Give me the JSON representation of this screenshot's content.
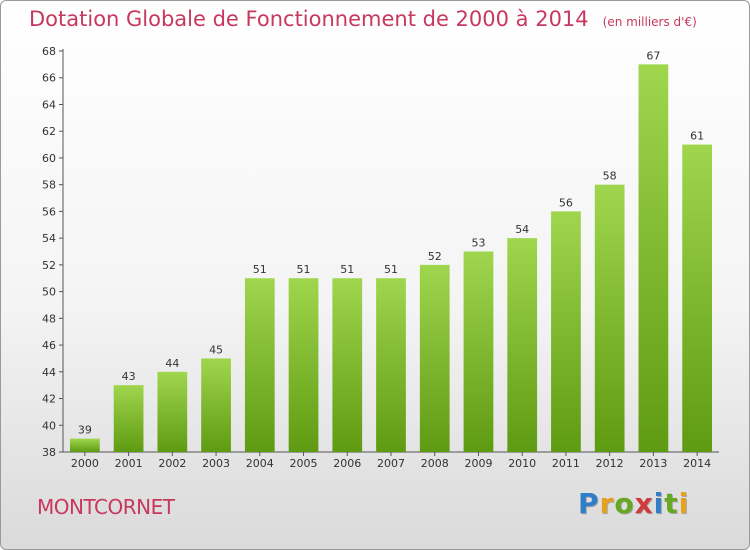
{
  "title": "Dotation Globale de Fonctionnement de 2000 à 2014",
  "unit": "(en milliers d'€)",
  "commune": "MONTCORNET",
  "logo": {
    "letters": [
      "P",
      "r",
      "o",
      "x",
      "i",
      "t",
      "i"
    ],
    "colors": [
      "#2f7ec8",
      "#e7a21d",
      "#66a823",
      "#d23a3a",
      "#2f7ec8",
      "#66a823",
      "#e7a21d"
    ]
  },
  "colors": {
    "bar_top": "#9fd64e",
    "bar_bottom": "#5f9b12",
    "accent": "#c8385e"
  },
  "chart_data": {
    "type": "bar",
    "categories": [
      "2000",
      "2001",
      "2002",
      "2003",
      "2004",
      "2005",
      "2006",
      "2007",
      "2008",
      "2009",
      "2010",
      "2011",
      "2012",
      "2013",
      "2014"
    ],
    "values": [
      39,
      43,
      44,
      45,
      51,
      51,
      51,
      51,
      52,
      53,
      54,
      56,
      58,
      67,
      61
    ],
    "data_labels": [
      "39",
      "43",
      "44",
      "45",
      "51",
      "51",
      "51",
      "51",
      "52",
      "53",
      "54",
      "56",
      "58",
      "67",
      "61"
    ],
    "yticks": [
      "38",
      "40",
      "42",
      "44",
      "46",
      "48",
      "50",
      "52",
      "54",
      "56",
      "58",
      "60",
      "62",
      "64",
      "66",
      "68"
    ],
    "ylim": [
      38,
      68
    ],
    "grid": false,
    "legend": "none"
  }
}
